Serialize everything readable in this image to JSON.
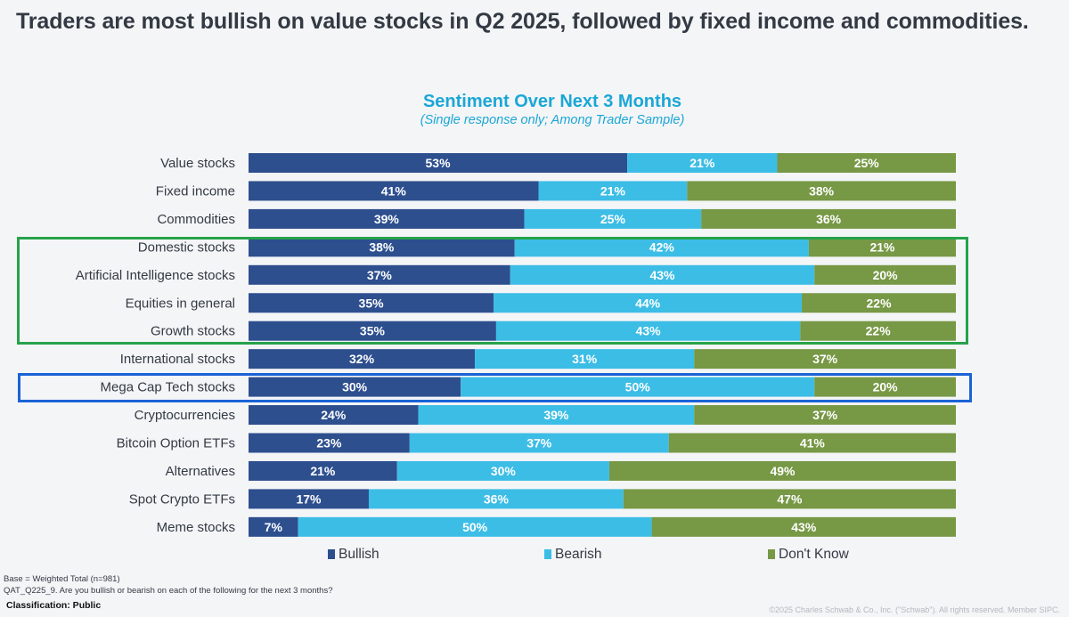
{
  "headline": "Traders are most bullish on value stocks in Q2 2025, followed by fixed income and commodities.",
  "chart_data": {
    "type": "bar",
    "orientation": "horizontal",
    "stacked": true,
    "normalized": true,
    "title": "Sentiment Over Next 3 Months",
    "subtitle": "(Single response only; Among Trader Sample)",
    "xlabel": "",
    "ylabel": "",
    "xlim": [
      0,
      100
    ],
    "legend_position": "bottom",
    "categories": [
      "Value stocks",
      "Fixed income",
      "Commodities",
      "Domestic stocks",
      "Artificial Intelligence stocks",
      "Equities in general",
      "Growth stocks",
      "International stocks",
      "Mega Cap Tech stocks",
      "Cryptocurrencies",
      "Bitcoin Option ETFs",
      "Alternatives",
      "Spot Crypto ETFs",
      "Meme stocks"
    ],
    "series": [
      {
        "name": "Bullish",
        "color": "#2d4f8e",
        "values": [
          53,
          41,
          39,
          38,
          37,
          35,
          35,
          32,
          30,
          24,
          23,
          21,
          17,
          7
        ]
      },
      {
        "name": "Bearish",
        "color": "#3cbde6",
        "values": [
          21,
          21,
          25,
          42,
          43,
          44,
          43,
          31,
          50,
          39,
          37,
          30,
          36,
          50
        ]
      },
      {
        "name": "Don't Know",
        "color": "#779845",
        "values": [
          25,
          38,
          36,
          21,
          20,
          22,
          22,
          37,
          20,
          37,
          41,
          49,
          47,
          43
        ]
      }
    ],
    "highlight_groups": [
      {
        "color": "#27a24a",
        "categories": [
          "Domestic stocks",
          "Artificial Intelligence stocks",
          "Equities in general",
          "Growth stocks"
        ]
      },
      {
        "color": "#1a63d6",
        "categories": [
          "Mega Cap Tech stocks"
        ]
      }
    ]
  },
  "footer": {
    "base_note": "Base = Weighted Total (n=981)",
    "question_note": "QAT_Q225_9. Are you bullish or bearish on each of the following for the next 3 months?",
    "classification": "Classification: Public",
    "copyright": "©2025 Charles Schwab & Co., Inc. (\"Schwab\"). All rights reserved. Member SIPC."
  }
}
